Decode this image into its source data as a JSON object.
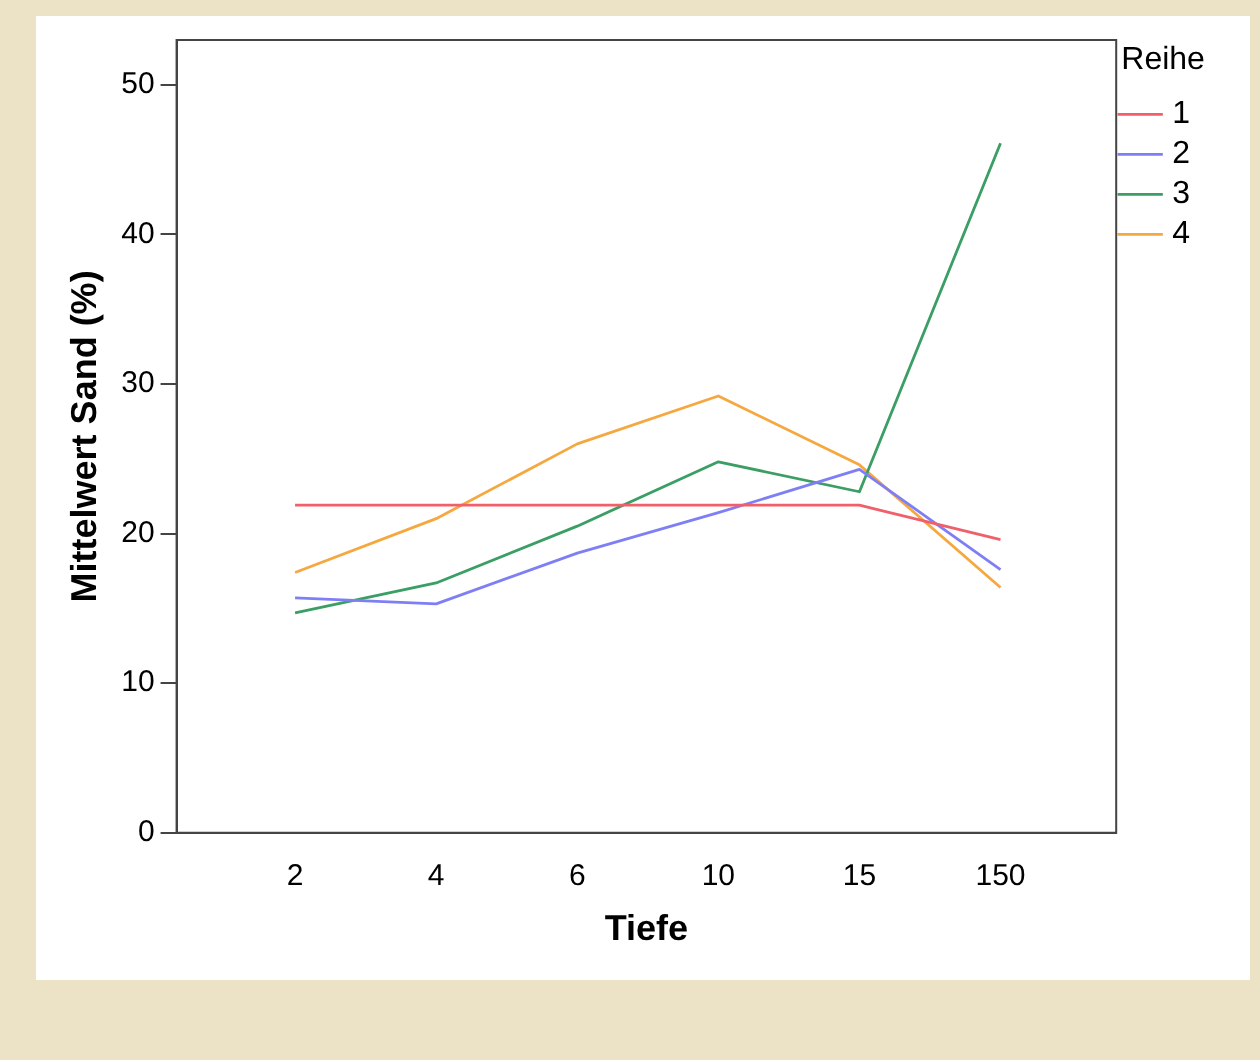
{
  "chart_data": {
    "type": "line",
    "xlabel": "Tiefe",
    "ylabel": "Mittelwert Sand (%)",
    "legend_title": "Reihe",
    "legend": "top right",
    "grid": false,
    "marker": "none",
    "line_style": "solid",
    "categories": [
      "2",
      "4",
      "6",
      "10",
      "15",
      "150"
    ],
    "ylim": [
      0,
      53
    ],
    "yticks": [
      0,
      10,
      20,
      30,
      40,
      50
    ],
    "series": [
      {
        "name": "1",
        "color": "#f0606a",
        "values": [
          21.9,
          21.9,
          21.9,
          21.9,
          21.9,
          19.6
        ]
      },
      {
        "name": "2",
        "color": "#7f7ff5",
        "values": [
          15.7,
          15.3,
          18.7,
          21.4,
          24.3,
          17.6
        ]
      },
      {
        "name": "3",
        "color": "#3a9e65",
        "values": [
          14.7,
          16.7,
          20.5,
          24.8,
          22.8,
          46.1
        ]
      },
      {
        "name": "4",
        "color": "#f6a840",
        "values": [
          17.4,
          21.0,
          26.0,
          29.2,
          24.6,
          16.4
        ]
      }
    ]
  }
}
